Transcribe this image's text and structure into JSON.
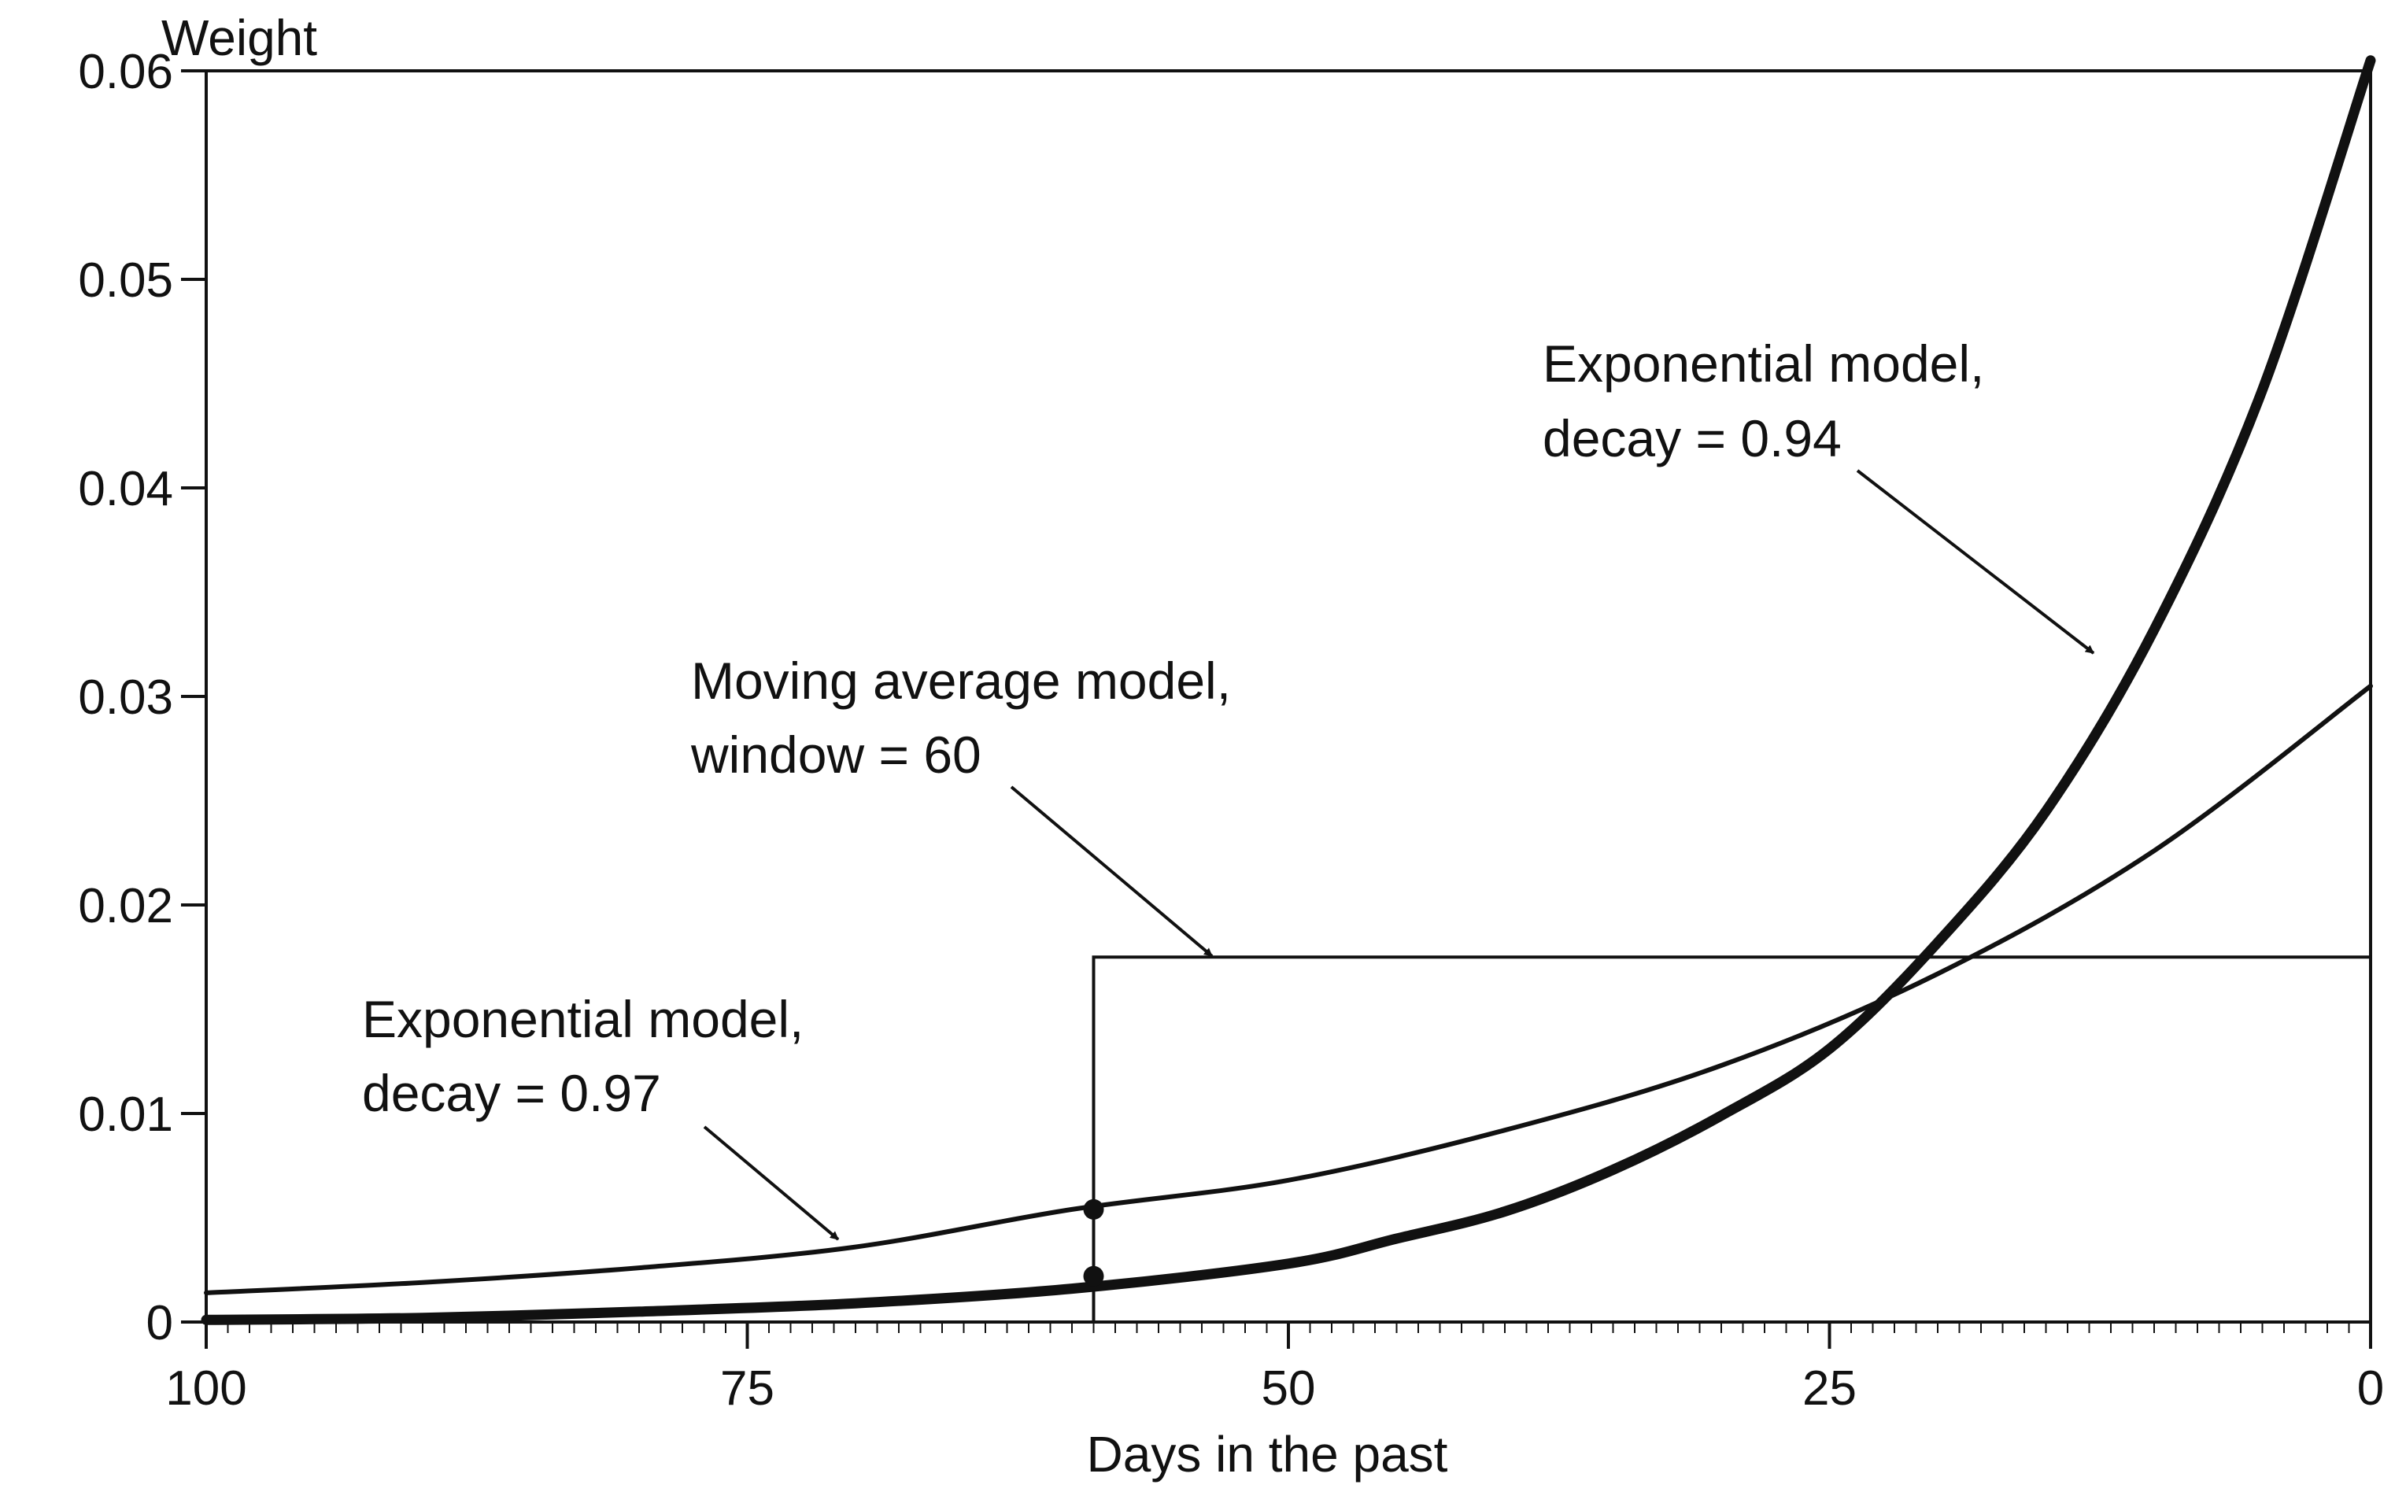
{
  "chart_data": {
    "type": "line",
    "title": "",
    "xlabel": "Days in the past",
    "ylabel": "Weight",
    "xlim": [
      100,
      0
    ],
    "ylim": [
      0,
      0.06
    ],
    "x_reversed": true,
    "grid": false,
    "x_ticks": [
      100,
      75,
      50,
      25,
      0
    ],
    "x_tick_labels": [
      "100",
      "75",
      "50",
      "25",
      "0"
    ],
    "y_ticks": [
      0,
      0.01,
      0.02,
      0.03,
      0.04,
      0.05,
      0.06
    ],
    "y_tick_labels": [
      "0",
      "0.01",
      "0.02",
      "0.03",
      "0.04",
      "0.05",
      "0.06"
    ],
    "series": [
      {
        "name": "Exponential model, decay = 0.94",
        "color": "#111111",
        "x": [
          100,
          90,
          80,
          70,
          60,
          50,
          45,
          40,
          35,
          30,
          25,
          20,
          15,
          10,
          5,
          0
        ],
        "y": [
          0.0001,
          0.0002,
          0.0005,
          0.0009,
          0.0016,
          0.0028,
          0.004,
          0.0053,
          0.0073,
          0.0099,
          0.0131,
          0.0182,
          0.0245,
          0.0332,
          0.0447,
          0.0605
        ]
      },
      {
        "name": "Exponential model, decay = 0.97",
        "color": "#111111",
        "x": [
          100,
          90,
          80,
          70,
          60,
          50,
          40,
          30,
          20,
          10,
          0
        ],
        "y": [
          0.0014,
          0.0019,
          0.0026,
          0.0036,
          0.0054,
          0.0068,
          0.0092,
          0.0123,
          0.0167,
          0.0226,
          0.0305
        ]
      },
      {
        "name": "Moving average model, window = 60",
        "color": "#111111",
        "x": [
          100,
          59,
          59,
          0,
          0
        ],
        "y": [
          0,
          0,
          0.0175,
          0.0175,
          0
        ]
      }
    ],
    "markers": [
      {
        "x": 59,
        "y": 0.0054
      },
      {
        "x": 59,
        "y": 0.0022
      }
    ],
    "annotations": [
      {
        "lines": [
          "Exponential model,",
          "decay = 0.94"
        ],
        "target_series": 0
      },
      {
        "lines": [
          "Moving average model,",
          "window = 60"
        ],
        "target_series": 2
      },
      {
        "lines": [
          "Exponential model,",
          "decay = 0.97"
        ],
        "target_series": 1
      }
    ]
  }
}
